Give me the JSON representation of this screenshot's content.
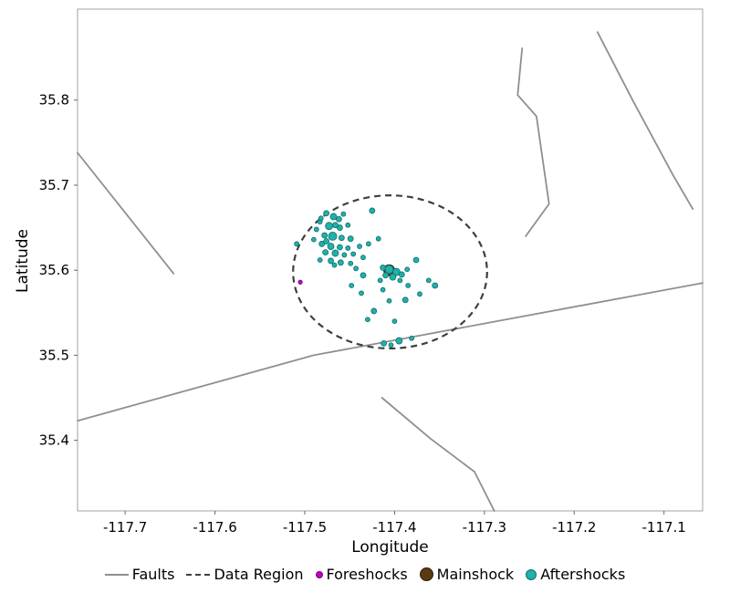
{
  "chart_data": {
    "type": "scatter",
    "title": "",
    "xlabel": "Longitude",
    "ylabel": "Latitude",
    "xlim": [
      -117.753,
      -117.057
    ],
    "ylim": [
      35.317,
      35.907
    ],
    "xticks": [
      -117.7,
      -117.6,
      -117.5,
      -117.4,
      -117.3,
      -117.2,
      -117.1
    ],
    "yticks": [
      35.4,
      35.5,
      35.6,
      35.7,
      35.8
    ],
    "grid": false,
    "legend_position": "bottom",
    "panel_border_color": "#b8b8b8",
    "series": [
      {
        "name": "Faults",
        "type": "line",
        "color": "#8f8f8f",
        "width": 1.8,
        "lines": [
          [
            [
              -117.753,
              35.738
            ],
            [
              -117.646,
              35.596
            ]
          ],
          [
            [
              -117.753,
              35.423
            ],
            [
              -117.49,
              35.5
            ],
            [
              -117.057,
              35.585
            ]
          ],
          [
            [
              -117.258,
              35.861
            ],
            [
              -117.263,
              35.806
            ],
            [
              -117.242,
              35.781
            ],
            [
              -117.228,
              35.678
            ],
            [
              -117.254,
              35.64
            ]
          ],
          [
            [
              -117.174,
              35.88
            ],
            [
              -117.135,
              35.8
            ],
            [
              -117.09,
              35.712
            ],
            [
              -117.068,
              35.672
            ]
          ],
          [
            [
              -117.414,
              35.45
            ],
            [
              -117.36,
              35.402
            ],
            [
              -117.311,
              35.363
            ],
            [
              -117.289,
              35.317
            ]
          ]
        ]
      },
      {
        "name": "Data Region",
        "type": "ellipse",
        "color": "#3f3f3f",
        "dash": [
          7,
          5
        ],
        "width": 2.2,
        "center": [
          -117.405,
          35.598
        ],
        "rx": 0.108,
        "ry": 0.09
      },
      {
        "name": "Foreshocks",
        "type": "scatter",
        "fill": "#bf00bf",
        "stroke": "#7a007a",
        "points": [
          [
            -117.505,
            35.586,
            2.2
          ]
        ]
      },
      {
        "name": "Mainshock",
        "type": "scatter",
        "fill": "#5a3a14",
        "stroke": "#2f1c08",
        "points": [
          [
            -117.406,
            35.6,
            6
          ]
        ]
      },
      {
        "name": "Aftershocks",
        "type": "scatter",
        "fill": "#21b0aa",
        "stroke": "#0e6f6b",
        "points": [
          [
            -117.476,
            35.667,
            3
          ],
          [
            -117.468,
            35.663,
            3.5
          ],
          [
            -117.483,
            35.657,
            2.5
          ],
          [
            -117.462,
            35.66,
            3
          ],
          [
            -117.473,
            35.652,
            4
          ],
          [
            -117.461,
            35.65,
            3
          ],
          [
            -117.487,
            35.648,
            2.5
          ],
          [
            -117.452,
            35.653,
            2.5
          ],
          [
            -117.478,
            35.641,
            3
          ],
          [
            -117.469,
            35.64,
            4.5
          ],
          [
            -117.459,
            35.638,
            3
          ],
          [
            -117.49,
            35.636,
            2.5
          ],
          [
            -117.449,
            35.637,
            3
          ],
          [
            -117.481,
            35.631,
            3
          ],
          [
            -117.471,
            35.628,
            3.5
          ],
          [
            -117.461,
            35.627,
            3
          ],
          [
            -117.452,
            35.626,
            2.5
          ],
          [
            -117.477,
            35.621,
            3
          ],
          [
            -117.466,
            35.62,
            3.5
          ],
          [
            -117.456,
            35.618,
            2.5
          ],
          [
            -117.446,
            35.619,
            2.5
          ],
          [
            -117.471,
            35.611,
            3
          ],
          [
            -117.46,
            35.609,
            3
          ],
          [
            -117.449,
            35.608,
            2.5
          ],
          [
            -117.483,
            35.612,
            2.5
          ],
          [
            -117.439,
            35.628,
            2.5
          ],
          [
            -117.435,
            35.615,
            2.5
          ],
          [
            -117.425,
            35.67,
            3
          ],
          [
            -117.418,
            35.637,
            2.5
          ],
          [
            -117.509,
            35.631,
            2.5
          ],
          [
            -117.413,
            35.603,
            3
          ],
          [
            -117.406,
            35.601,
            4.5
          ],
          [
            -117.398,
            35.598,
            4
          ],
          [
            -117.41,
            35.594,
            3
          ],
          [
            -117.402,
            35.592,
            3.5
          ],
          [
            -117.392,
            35.595,
            3
          ],
          [
            -117.394,
            35.588,
            2.5
          ],
          [
            -117.386,
            35.601,
            2.5
          ],
          [
            -117.416,
            35.588,
            2.5
          ],
          [
            -117.376,
            35.612,
            3
          ],
          [
            -117.362,
            35.588,
            2.5
          ],
          [
            -117.355,
            35.582,
            3
          ],
          [
            -117.372,
            35.572,
            2.5
          ],
          [
            -117.388,
            35.565,
            3
          ],
          [
            -117.406,
            35.564,
            2.5
          ],
          [
            -117.423,
            35.552,
            3
          ],
          [
            -117.437,
            35.573,
            2.5
          ],
          [
            -117.448,
            35.582,
            2.5
          ],
          [
            -117.43,
            35.542,
            2.5
          ],
          [
            -117.4,
            35.54,
            2.5
          ],
          [
            -117.435,
            35.594,
            3
          ],
          [
            -117.412,
            35.514,
            3
          ],
          [
            -117.395,
            35.517,
            3.5
          ],
          [
            -117.381,
            35.52,
            2.5
          ],
          [
            -117.404,
            35.512,
            2.5
          ],
          [
            -117.482,
            35.661,
            2.5
          ],
          [
            -117.457,
            35.666,
            2.5
          ],
          [
            -117.466,
            35.653,
            3
          ],
          [
            -117.476,
            35.634,
            3
          ],
          [
            -117.467,
            35.606,
            2.5
          ],
          [
            -117.443,
            35.602,
            2.5
          ],
          [
            -117.429,
            35.631,
            2.5
          ],
          [
            -117.413,
            35.577,
            2.5
          ],
          [
            -117.385,
            35.582,
            2.5
          ]
        ]
      }
    ],
    "legend": [
      {
        "label": "Faults",
        "swatch": "line"
      },
      {
        "label": "Data Region",
        "swatch": "dashed"
      },
      {
        "label": "Foreshocks",
        "swatch": "dot",
        "size": 6
      },
      {
        "label": "Mainshock",
        "swatch": "dot",
        "size": 13
      },
      {
        "label": "Aftershocks",
        "swatch": "dot",
        "size": 10
      }
    ]
  }
}
